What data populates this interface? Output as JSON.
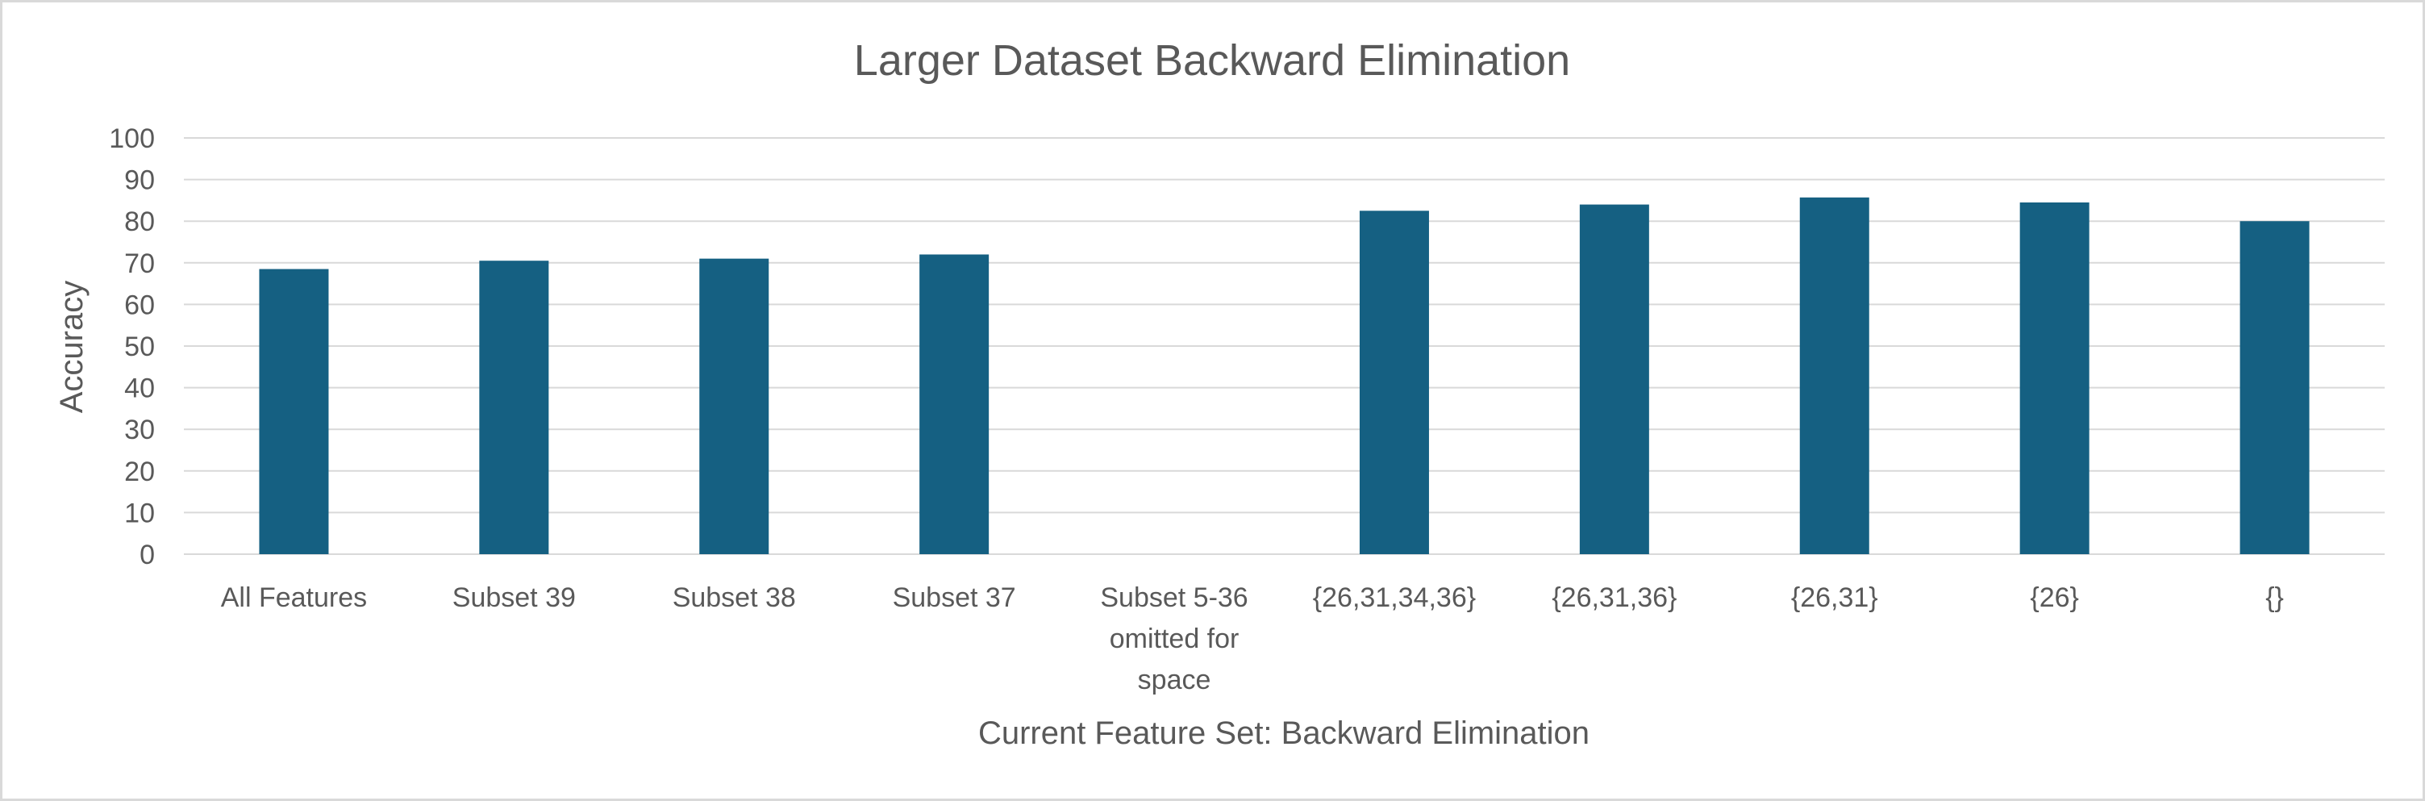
{
  "chart_data": {
    "type": "bar",
    "title": "Larger Dataset Backward Elimination",
    "xlabel": "Current Feature Set: Backward Elimination",
    "ylabel": "Accuracy",
    "ylim": [
      0,
      100
    ],
    "yticks": [
      "0",
      "10",
      "20",
      "30",
      "40",
      "50",
      "60",
      "70",
      "80",
      "90",
      "100"
    ],
    "categories": [
      [
        "All Features"
      ],
      [
        "Subset 39"
      ],
      [
        "Subset 38"
      ],
      [
        "Subset 37"
      ],
      [
        "Subset 5-36",
        "omitted for",
        "space"
      ],
      [
        "{26,31,34,36}"
      ],
      [
        "{26,31,36}"
      ],
      [
        "{26,31}"
      ],
      [
        "{26}"
      ],
      [
        "{}"
      ]
    ],
    "values": [
      68.5,
      70.5,
      71,
      72,
      null,
      82.5,
      84,
      85.7,
      84.5,
      80
    ],
    "grid": true,
    "legend": "none",
    "bar_color": "#156082",
    "grid_color": "#d9d9d9",
    "text_color": "#595959"
  }
}
